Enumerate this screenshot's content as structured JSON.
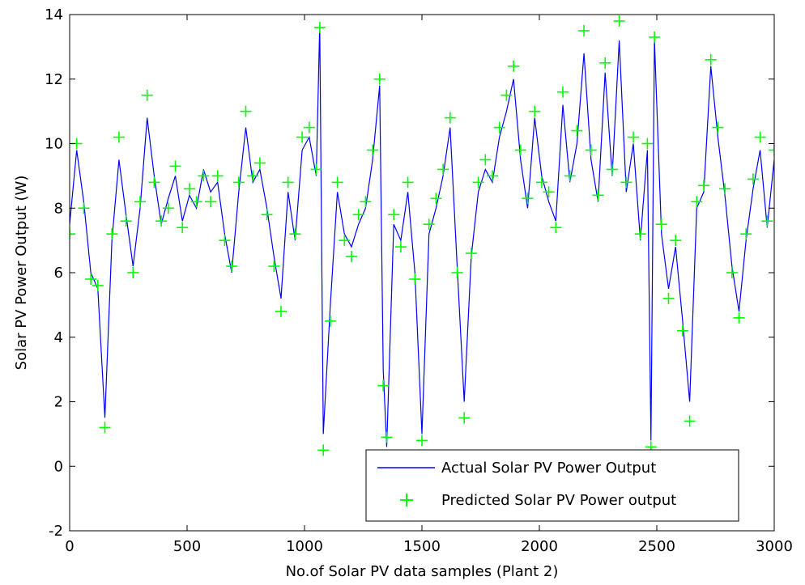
{
  "chart_data": {
    "type": "line",
    "title": "",
    "xlabel": "No.of Solar PV data samples (Plant 2)",
    "ylabel": "Solar PV Power Output (W)",
    "xlim": [
      0,
      3000
    ],
    "ylim": [
      -2,
      14
    ],
    "x_ticks": [
      0,
      500,
      1000,
      1500,
      2000,
      2500,
      3000
    ],
    "y_ticks": [
      -2,
      0,
      2,
      4,
      6,
      8,
      10,
      12,
      14
    ],
    "grid": false,
    "legend_position": "bottom-right",
    "series": [
      {
        "name": "Actual Solar PV Power Output",
        "style": "line",
        "color": "#0000ff",
        "x": [
          0,
          30,
          60,
          90,
          120,
          150,
          180,
          210,
          240,
          270,
          300,
          330,
          360,
          390,
          420,
          450,
          480,
          510,
          540,
          570,
          600,
          630,
          660,
          690,
          720,
          750,
          780,
          810,
          840,
          870,
          900,
          930,
          960,
          990,
          1020,
          1050,
          1065,
          1080,
          1110,
          1140,
          1170,
          1200,
          1230,
          1260,
          1290,
          1320,
          1335,
          1350,
          1380,
          1410,
          1440,
          1470,
          1500,
          1530,
          1560,
          1590,
          1620,
          1650,
          1680,
          1710,
          1740,
          1770,
          1800,
          1830,
          1860,
          1890,
          1920,
          1950,
          1980,
          2010,
          2040,
          2070,
          2100,
          2130,
          2160,
          2190,
          2220,
          2250,
          2280,
          2310,
          2340,
          2370,
          2400,
          2430,
          2460,
          2475,
          2490,
          2520,
          2550,
          2580,
          2610,
          2640,
          2670,
          2700,
          2730,
          2760,
          2790,
          2820,
          2850,
          2880,
          2910,
          2940,
          2970,
          3000
        ],
        "y": [
          7.5,
          9.8,
          8.2,
          6.0,
          5.5,
          1.5,
          7.0,
          9.5,
          7.8,
          6.2,
          8.0,
          10.8,
          9.0,
          7.5,
          8.3,
          9.0,
          7.6,
          8.4,
          8.0,
          9.2,
          8.5,
          8.8,
          7.2,
          6.0,
          8.5,
          10.5,
          8.8,
          9.2,
          8.0,
          6.5,
          5.2,
          8.5,
          7.0,
          9.8,
          10.2,
          9.0,
          13.7,
          1.0,
          5.0,
          8.5,
          7.2,
          6.8,
          7.5,
          8.0,
          9.5,
          11.8,
          3.0,
          0.6,
          7.5,
          7.0,
          8.5,
          6.0,
          1.0,
          7.2,
          8.0,
          9.0,
          10.5,
          6.2,
          2.0,
          6.5,
          8.5,
          9.2,
          8.8,
          10.2,
          11.0,
          12.0,
          9.5,
          8.0,
          10.8,
          9.0,
          8.2,
          7.6,
          11.2,
          8.8,
          10.0,
          12.8,
          9.5,
          8.2,
          12.2,
          9.0,
          13.2,
          8.5,
          10.0,
          7.0,
          9.8,
          0.8,
          13.2,
          7.2,
          5.5,
          6.8,
          4.5,
          2.0,
          8.0,
          8.5,
          12.4,
          10.2,
          8.4,
          6.2,
          4.8,
          7.0,
          8.6,
          9.8,
          7.4,
          9.5
        ]
      },
      {
        "name": "Predicted Solar PV Power output",
        "style": "markers",
        "marker": "+",
        "color": "#00ff00",
        "x": [
          0,
          30,
          60,
          90,
          120,
          150,
          180,
          210,
          240,
          270,
          300,
          330,
          360,
          390,
          420,
          450,
          480,
          510,
          540,
          570,
          600,
          630,
          660,
          690,
          720,
          750,
          780,
          810,
          840,
          870,
          900,
          930,
          960,
          990,
          1020,
          1050,
          1065,
          1080,
          1110,
          1140,
          1170,
          1200,
          1230,
          1260,
          1290,
          1320,
          1335,
          1350,
          1380,
          1410,
          1440,
          1470,
          1500,
          1530,
          1560,
          1590,
          1620,
          1650,
          1680,
          1710,
          1740,
          1770,
          1800,
          1830,
          1860,
          1890,
          1920,
          1950,
          1980,
          2010,
          2040,
          2070,
          2100,
          2130,
          2160,
          2190,
          2220,
          2250,
          2280,
          2310,
          2340,
          2370,
          2400,
          2430,
          2460,
          2475,
          2490,
          2520,
          2550,
          2580,
          2610,
          2640,
          2670,
          2700,
          2730,
          2760,
          2790,
          2820,
          2850,
          2880,
          2910,
          2940,
          2970,
          3000
        ],
        "y": [
          7.2,
          10.0,
          8.0,
          5.8,
          5.6,
          1.2,
          7.2,
          10.2,
          7.6,
          6.0,
          8.2,
          11.5,
          8.8,
          7.6,
          8.0,
          9.3,
          7.4,
          8.6,
          8.2,
          9.0,
          8.2,
          9.0,
          7.0,
          6.2,
          8.8,
          11.0,
          9.0,
          9.4,
          7.8,
          6.2,
          4.8,
          8.8,
          7.2,
          10.2,
          10.5,
          9.2,
          13.6,
          0.5,
          4.5,
          8.8,
          7.0,
          6.5,
          7.8,
          8.2,
          9.8,
          12.0,
          2.5,
          0.9,
          7.8,
          6.8,
          8.8,
          5.8,
          0.8,
          7.5,
          8.3,
          9.2,
          10.8,
          6.0,
          1.5,
          6.6,
          8.8,
          9.5,
          9.0,
          10.5,
          11.5,
          12.4,
          9.8,
          8.3,
          11.0,
          8.8,
          8.5,
          7.4,
          11.6,
          9.0,
          10.4,
          13.5,
          9.8,
          8.4,
          12.5,
          9.2,
          13.8,
          8.8,
          10.2,
          7.2,
          10.0,
          0.6,
          13.3,
          7.5,
          5.2,
          7.0,
          4.2,
          1.4,
          8.2,
          8.7,
          12.6,
          10.5,
          8.6,
          6.0,
          4.6,
          7.2,
          8.9,
          10.2,
          7.6,
          9.8
        ]
      }
    ]
  }
}
